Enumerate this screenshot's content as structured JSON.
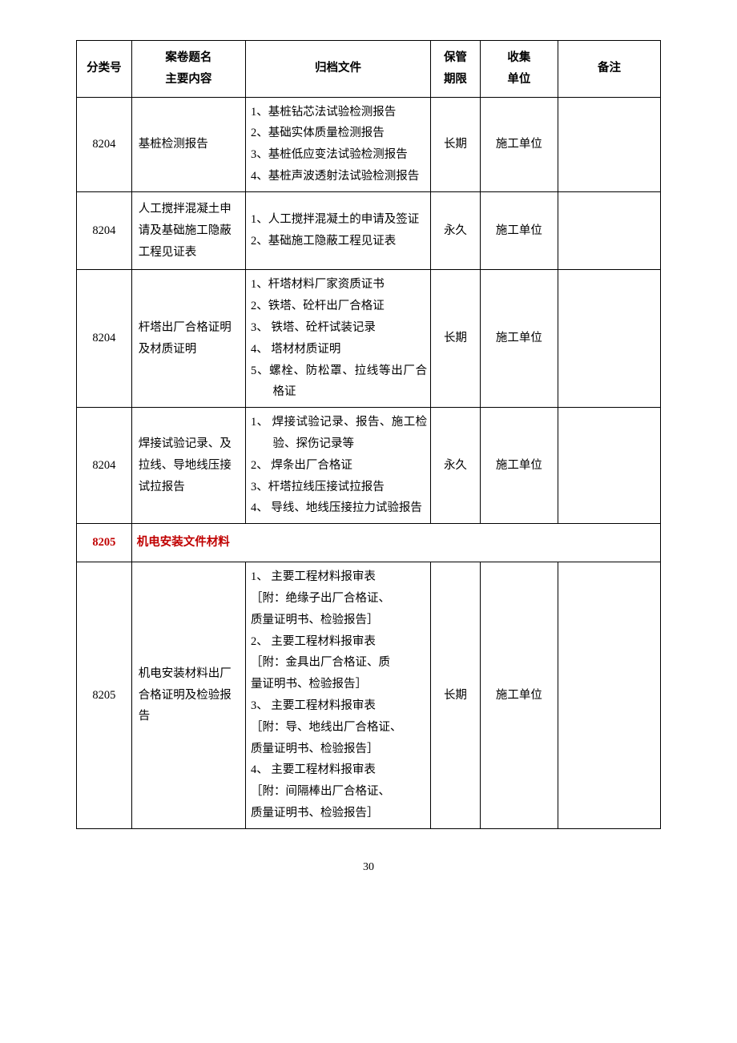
{
  "header": {
    "code": "分类号",
    "title_line1": "案卷题名",
    "title_line2": "主要内容",
    "file": "归档文件",
    "period_line1": "保管",
    "period_line2": "期限",
    "unit_line1": "收集",
    "unit_line2": "单位",
    "remark": "备注"
  },
  "rows": [
    {
      "code": "8204",
      "title": "基桩检测报告",
      "files": [
        "1、基桩钻芯法试验检测报告",
        "2、基础实体质量检测报告",
        "3、基桩低应变法试验检测报告",
        "4、基桩声波透射法试验检测报告"
      ],
      "period": "长期",
      "unit": "施工单位",
      "remark": ""
    },
    {
      "code": "8204",
      "title": "人工搅拌混凝土申请及基础施工隐蔽工程见证表",
      "files": [
        "1、人工搅拌混凝土的申请及签证",
        "2、基础施工隐蔽工程见证表"
      ],
      "period": "永久",
      "unit": "施工单位",
      "remark": ""
    },
    {
      "code": "8204",
      "title": "杆塔出厂合格证明及材质证明",
      "files": [
        "1、杆塔材料厂家资质证书",
        "2、铁塔、砼杆出厂合格证",
        "3、 铁塔、砼杆试装记录",
        "4、 塔材材质证明",
        "5、螺栓、防松罩、拉线等出厂合格证"
      ],
      "period": "长期",
      "unit": "施工单位",
      "remark": ""
    },
    {
      "code": "8204",
      "title": "焊接试验记录、及拉线、导地线压接试拉报告",
      "files": [
        "1、 焊接试验记录、报告、施工检验、探伤记录等",
        "2、 焊条出厂合格证",
        "3、杆塔拉线压接试拉报告",
        "4、 导线、地线压接拉力试验报告"
      ],
      "period": "永久",
      "unit": "施工单位",
      "remark": ""
    }
  ],
  "section": {
    "code": "8205",
    "title": "机电安装文件材料"
  },
  "rows2": [
    {
      "code": "8205",
      "title": "机电安装材料出厂合格证明及检验报告",
      "files_plain": [
        "1、 主要工程材料报审表",
        "［附：绝缘子出厂合格证、",
        "质量证明书、检验报告］",
        "2、 主要工程材料报审表",
        "［附：金具出厂合格证、质",
        "量证明书、检验报告］",
        "3、 主要工程材料报审表",
        "［附：导、地线出厂合格证、",
        "质量证明书、检验报告］",
        "4、 主要工程材料报审表",
        "［附：间隔棒出厂合格证、",
        "质量证明书、检验报告］"
      ],
      "period": "长期",
      "unit": "施工单位",
      "remark": ""
    }
  ],
  "page_number": "30"
}
